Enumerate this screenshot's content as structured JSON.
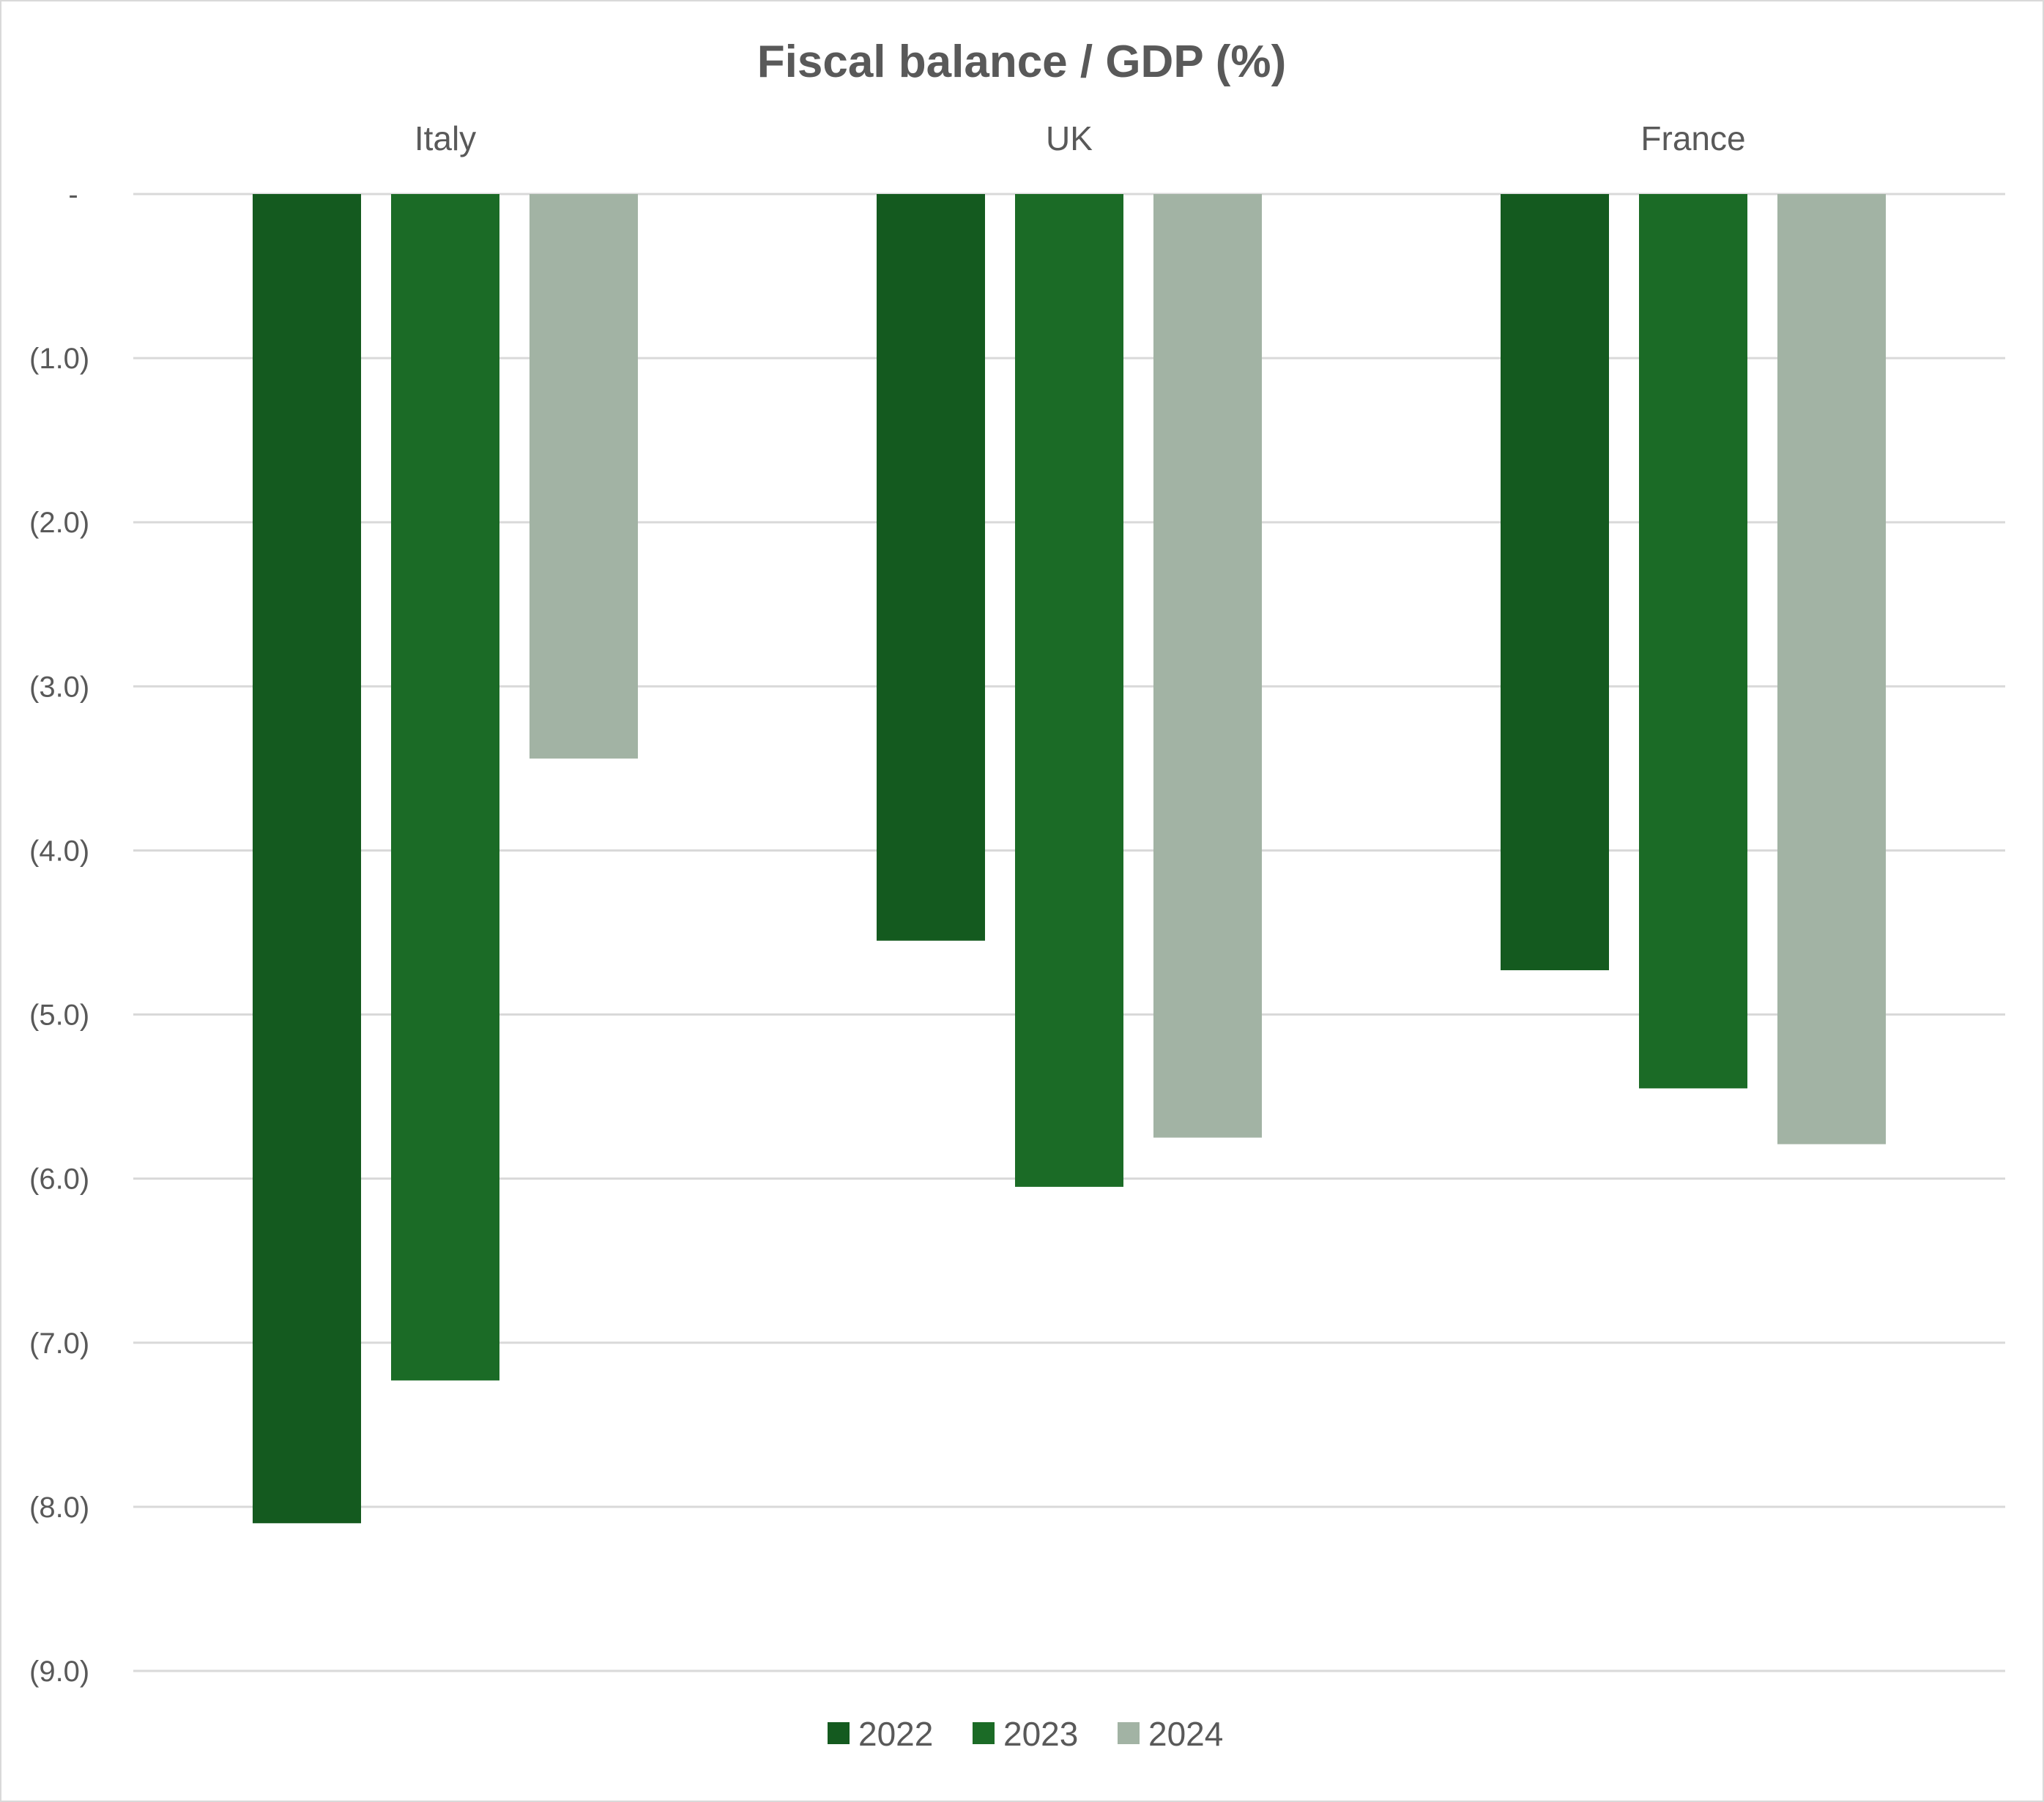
{
  "chart_data": {
    "type": "bar",
    "title": "Fiscal balance / GDP (%)",
    "xlabel": "",
    "ylabel": "",
    "categories": [
      "Italy",
      "UK",
      "France"
    ],
    "category_axis_position": "top",
    "series": [
      {
        "name": "2022",
        "color": "#145a1f",
        "values": [
          -8.1,
          -4.55,
          -4.73
        ]
      },
      {
        "name": "2023",
        "color": "#1b6b26",
        "values": [
          -7.23,
          -6.05,
          -5.45
        ]
      },
      {
        "name": "2024",
        "color": "#a2b3a4",
        "values": [
          -3.44,
          -5.75,
          -5.79
        ]
      }
    ],
    "ylim": [
      -9,
      0
    ],
    "yticks": [
      0,
      -1,
      -2,
      -3,
      -4,
      -5,
      -6,
      -7,
      -8,
      -9
    ],
    "ytick_labels": [
      "-",
      "(1.0)",
      "(2.0)",
      "(3.0)",
      "(4.0)",
      "(5.0)",
      "(6.0)",
      "(7.0)",
      "(8.0)",
      "(9.0)"
    ],
    "grid": true,
    "legend_position": "bottom"
  }
}
